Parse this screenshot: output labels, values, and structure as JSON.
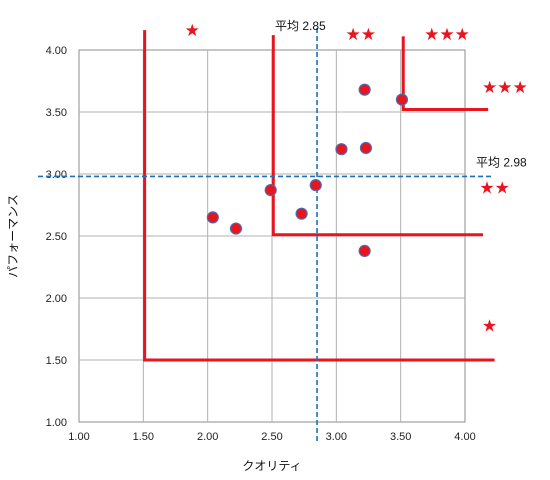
{
  "chart_data": {
    "type": "scatter",
    "xlabel": "クオリティ",
    "ylabel": "パフォーマンス",
    "xlim": [
      1.0,
      4.0
    ],
    "ylim": [
      1.0,
      4.0
    ],
    "x_ticks": [
      "1.00",
      "1.50",
      "2.00",
      "2.50",
      "3.00",
      "3.50",
      "4.00"
    ],
    "y_ticks": [
      "1.00",
      "1.50",
      "2.00",
      "2.50",
      "3.00",
      "3.50",
      "4.00"
    ],
    "grid": true,
    "legend": "none",
    "colors": {
      "point_fill": "#e8141e",
      "point_edge": "#4a6bb3",
      "boundary": "#e8141e",
      "mean_line": "#1f6fbf",
      "grid": "#b0b0b0"
    },
    "points": [
      {
        "x": 2.04,
        "y": 2.65
      },
      {
        "x": 2.22,
        "y": 2.56
      },
      {
        "x": 2.49,
        "y": 2.87
      },
      {
        "x": 2.73,
        "y": 2.68
      },
      {
        "x": 2.84,
        "y": 2.91
      },
      {
        "x": 3.04,
        "y": 3.2
      },
      {
        "x": 3.22,
        "y": 3.68
      },
      {
        "x": 3.23,
        "y": 3.21
      },
      {
        "x": 3.22,
        "y": 2.38
      },
      {
        "x": 3.51,
        "y": 3.6
      }
    ],
    "mean_lines": {
      "x": 2.85,
      "x_label": "平均 2.85",
      "y": 2.98,
      "y_label": "平均 2.98"
    },
    "boundaries": [
      {
        "x0": 1.51,
        "y0": 1.5,
        "ytop": 4.16,
        "xend": 4.23
      },
      {
        "x0": 2.51,
        "y0": 2.51,
        "ytop": 4.12,
        "xend": 4.14
      },
      {
        "x0": 3.52,
        "y0": 3.52,
        "ytop": 4.11,
        "xend": 4.18
      }
    ],
    "annotations": [
      {
        "text": "★",
        "x": 1.88,
        "y": 4.16
      },
      {
        "text": "★★",
        "x": 3.19,
        "y": 4.13
      },
      {
        "text": "★★★",
        "x": 3.86,
        "y": 4.13
      },
      {
        "text": "★★★",
        "x": 4.31,
        "y": 3.7
      },
      {
        "text": "★★",
        "x": 4.23,
        "y": 2.89
      },
      {
        "text": "★",
        "x": 4.19,
        "y": 1.78
      }
    ]
  }
}
